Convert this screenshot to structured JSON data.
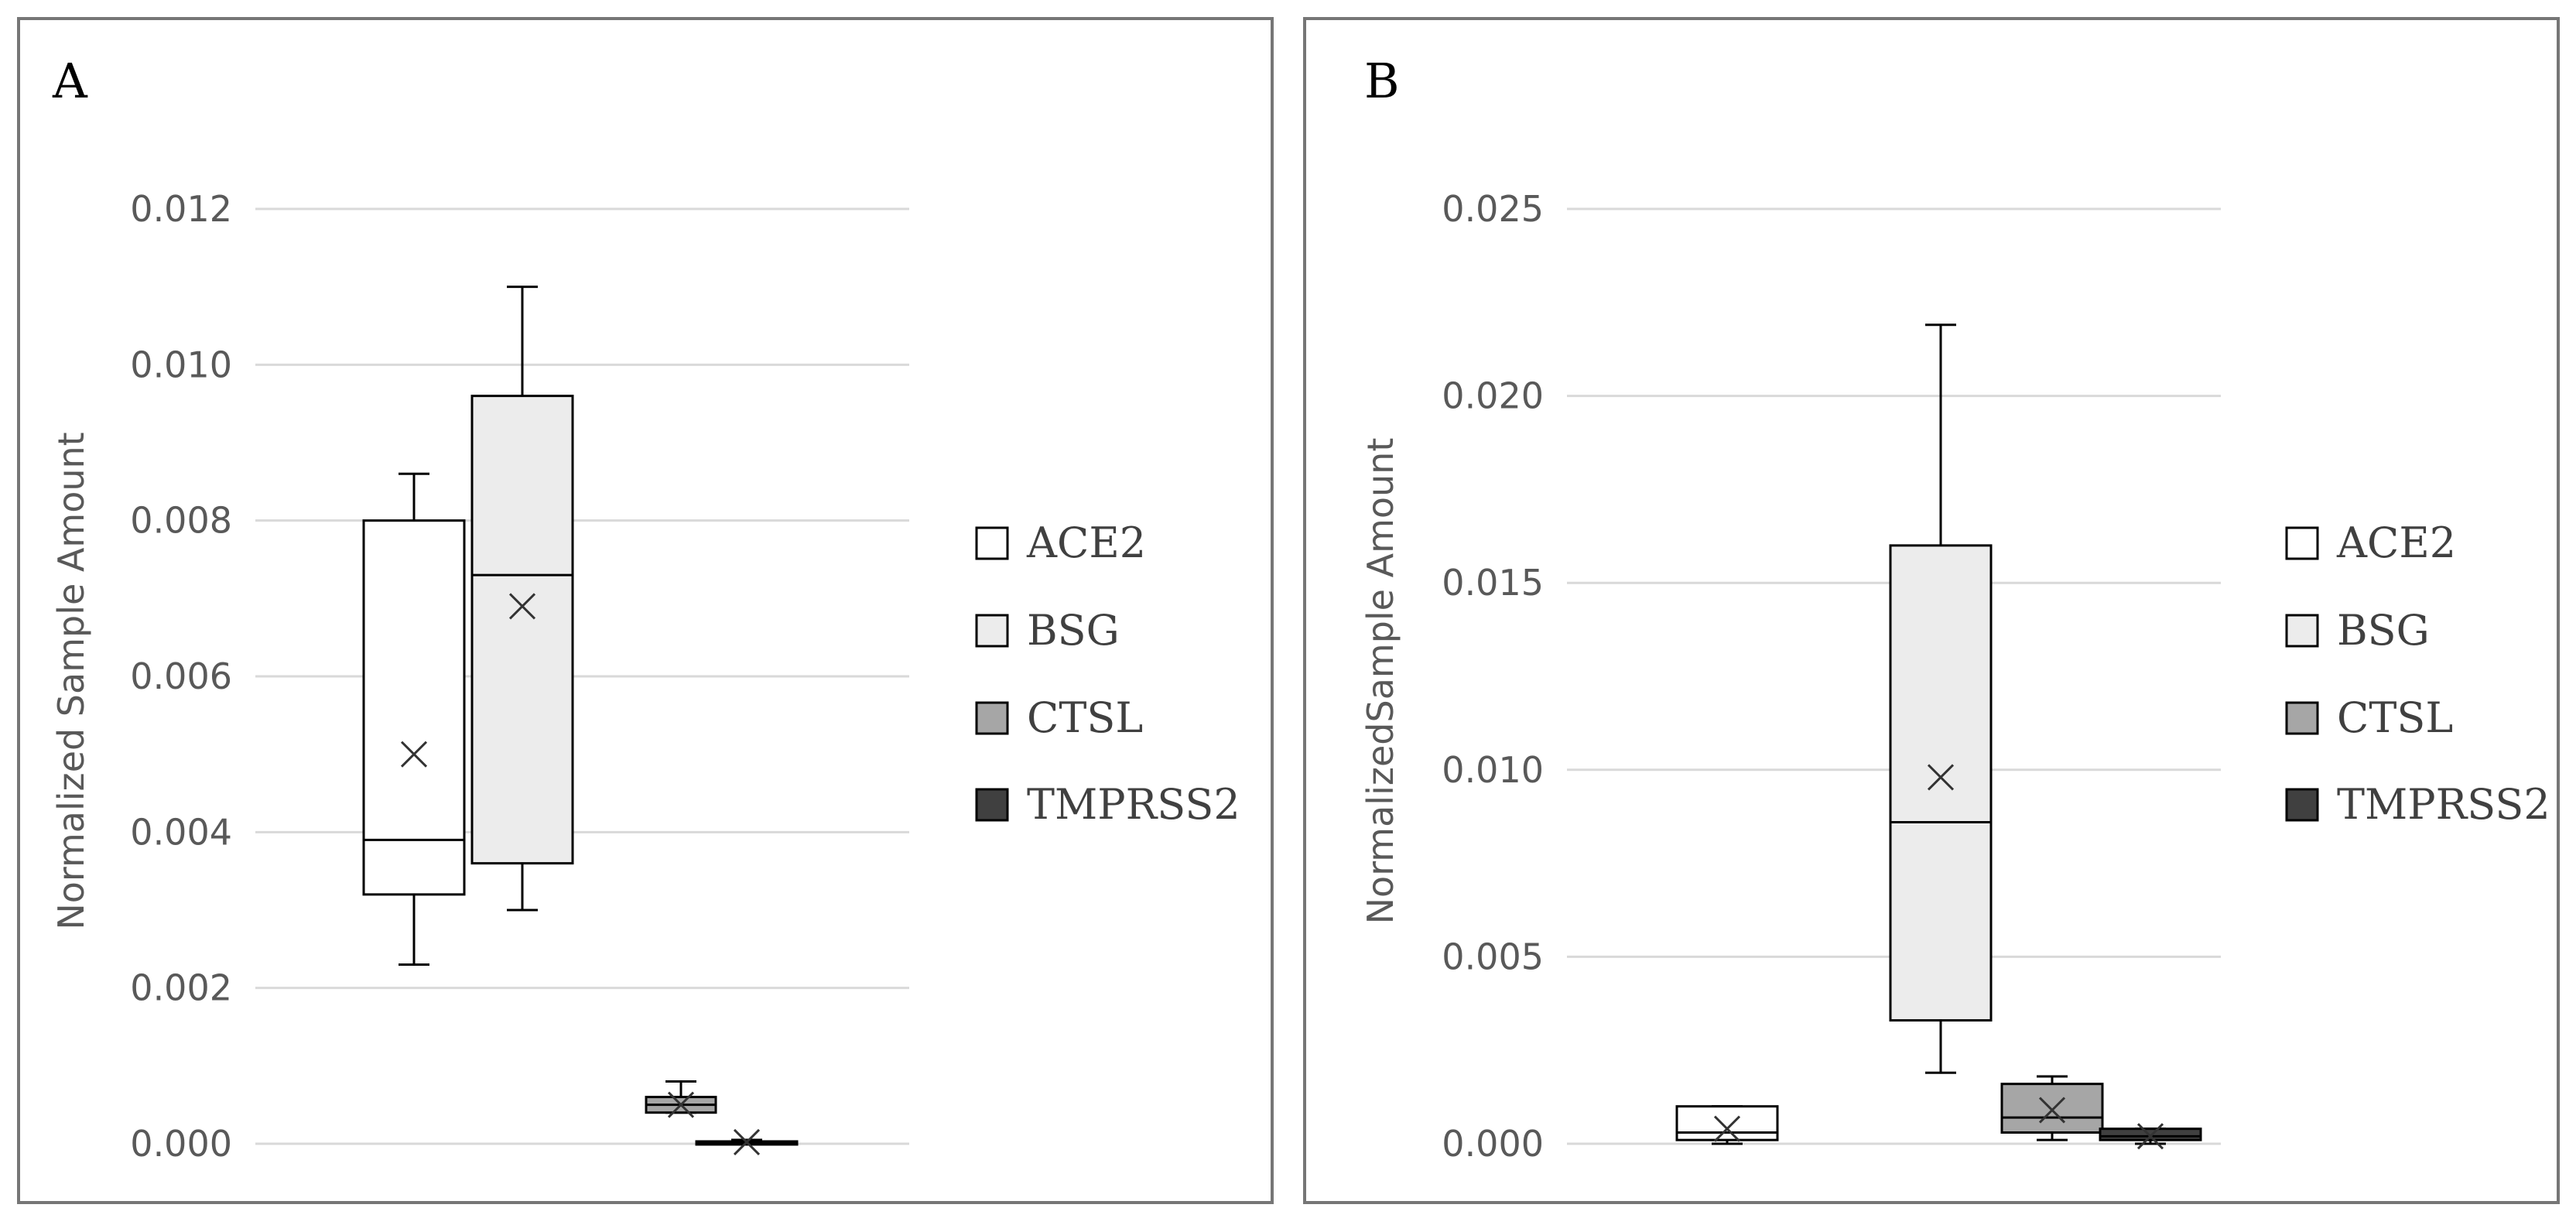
{
  "chart_data": [
    {
      "type": "box",
      "panel_label": "A",
      "ylabel": "Normalized Sample Amount",
      "ylim": [
        0,
        0.012
      ],
      "yticks": [
        "0.000",
        "0.002",
        "0.004",
        "0.006",
        "0.008",
        "0.010",
        "0.012"
      ],
      "grid": true,
      "legend_position": "right",
      "series": [
        {
          "name": "ACE2",
          "fill": "#ffffff",
          "min": 0.0023,
          "q1": 0.0032,
          "median": 0.0039,
          "q3": 0.008,
          "max": 0.0086,
          "mean": 0.005
        },
        {
          "name": "BSG",
          "fill": "#ececec",
          "min": 0.003,
          "q1": 0.0036,
          "median": 0.0073,
          "q3": 0.0096,
          "max": 0.011,
          "mean": 0.0069
        },
        {
          "name": "CTSL",
          "fill": "#a6a6a6",
          "min": 0.0004,
          "q1": 0.0004,
          "median": 0.0005,
          "q3": 0.0006,
          "max": 0.0008,
          "mean": 0.0005
        },
        {
          "name": "TMPRSS2",
          "fill": "#404040",
          "min": 0.0,
          "q1": 0.0,
          "median": 0.0,
          "q3": 3e-05,
          "max": 5e-05,
          "mean": 2e-05
        }
      ]
    },
    {
      "type": "box",
      "panel_label": "B",
      "ylabel": "NormalizedSample Amount",
      "ylim": [
        0,
        0.025
      ],
      "yticks": [
        "0.000",
        "0.005",
        "0.010",
        "0.015",
        "0.020",
        "0.025"
      ],
      "grid": true,
      "legend_position": "right",
      "series": [
        {
          "name": "ACE2",
          "fill": "#ffffff",
          "min": 0.0,
          "q1": 0.0001,
          "median": 0.0003,
          "q3": 0.001,
          "max": 0.001,
          "mean": 0.0004
        },
        {
          "name": "BSG",
          "fill": "#ececec",
          "min": 0.0019,
          "q1": 0.0033,
          "median": 0.0086,
          "q3": 0.016,
          "max": 0.0219,
          "mean": 0.0098
        },
        {
          "name": "CTSL",
          "fill": "#a6a6a6",
          "min": 0.0001,
          "q1": 0.0003,
          "median": 0.0007,
          "q3": 0.0016,
          "max": 0.0018,
          "mean": 0.0009
        },
        {
          "name": "TMPRSS2",
          "fill": "#404040",
          "min": 0.0,
          "q1": 0.0001,
          "median": 0.0002,
          "q3": 0.0004,
          "max": 0.0004,
          "mean": 0.0002
        }
      ]
    }
  ]
}
